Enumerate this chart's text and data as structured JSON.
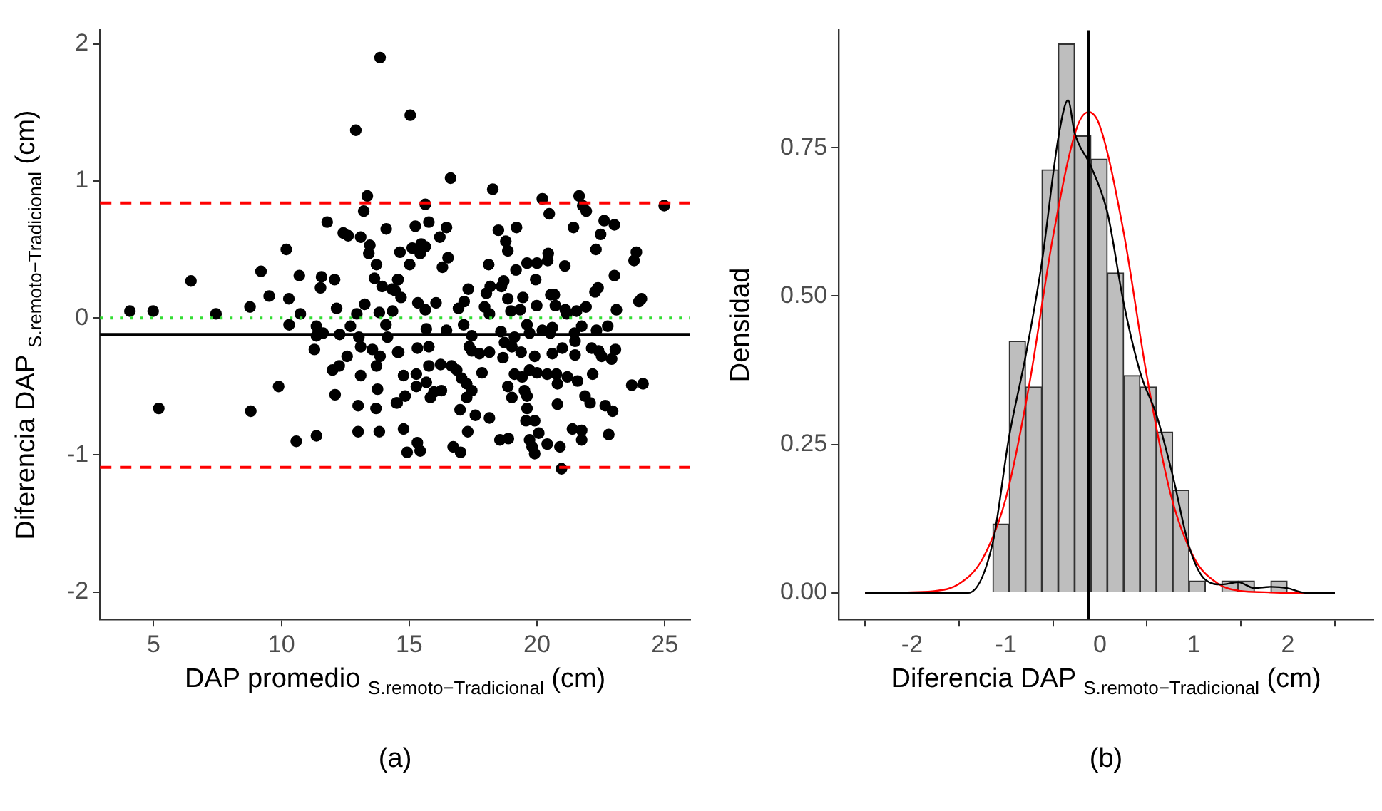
{
  "chart_data": [
    {
      "type": "scatter",
      "title": "(a)",
      "xlabel": "DAP promedio $_{S.remoto−Tradicional}$ (cm)",
      "ylabel": "Diferencia DAP $_{S.remoto−Tradicional}$ (cm)",
      "xlim": [
        2.9,
        26.0
      ],
      "ylim": [
        -2.2,
        2.1
      ],
      "xticks": [
        5,
        10,
        15,
        20,
        25
      ],
      "yticks": [
        -2,
        -1,
        0,
        1,
        2
      ],
      "grid": false,
      "marker": "circle",
      "ref_lines": [
        {
          "axis": "y",
          "value": 0.84,
          "color": "#ff0000",
          "line_style": "dashed"
        },
        {
          "axis": "y",
          "value": -1.09,
          "color": "#ff0000",
          "line_style": "dashed"
        },
        {
          "axis": "y",
          "value": -0.12,
          "color": "#000000",
          "line_style": "solid"
        },
        {
          "axis": "y",
          "value": 0,
          "color": "#33dd33",
          "line_style": "dotted"
        }
      ],
      "series": [
        {
          "color": "#000000",
          "x": [
            13.86,
            12.91,
            13.36,
            13.22,
            11.79,
            12.42,
            12.61,
            13.1,
            14.1,
            13.46,
            13.42,
            10.19,
            13.72,
            9.2,
            6.46,
            10.7,
            11.57,
            11.53,
            12.08,
            13.64,
            13.94,
            14.33,
            14.55,
            9.52,
            10.29,
            8.77,
            4.07,
            4.98,
            7.44,
            10.74,
            12.16,
            12.95,
            13.26,
            13.83,
            14.35,
            10.3,
            11.37,
            11.37,
            11.63,
            12.28,
            12.7,
            13.03,
            13.1,
            13.56,
            13.86,
            13.72,
            14.15,
            14.09,
            11.29,
            12.57,
            12.0,
            12.26,
            13.1,
            9.89,
            12.1,
            13.76,
            14.55,
            14.5,
            5.2,
            8.8,
            13.0,
            13.7,
            13.0,
            13.83,
            10.58,
            11.37,
            15.04,
            16.62,
            18.27,
            20.21,
            20.48,
            21.65,
            21.79,
            21.93,
            24.98,
            15.63,
            15.24,
            15.77,
            16.46,
            16.2,
            18.49,
            19.2,
            18.78,
            18.86,
            21.43,
            22.63,
            23.03,
            22.49,
            22.31,
            14.64,
            15.12,
            15.47,
            15.63,
            15.43,
            15.02,
            16.52,
            16.3,
            18.11,
            19.61,
            20.0,
            20.44,
            20.42,
            21.09,
            23.89,
            23.8,
            23.03,
            19.18,
            19.95,
            18.7,
            18.61,
            18.17,
            18.02,
            17.31,
            17.15,
            16.93,
            16.05,
            15.34,
            15.63,
            14.68,
            14.45,
            14.57,
            18.86,
            19.45,
            20.54,
            20.68,
            22.39,
            22.27,
            24.09,
            23.99,
            23.11,
            17.95,
            18.14,
            18.98,
            19.34,
            19.99,
            20.72,
            21.11,
            21.55,
            21.92,
            21.17,
            15.67,
            16.46,
            17.13,
            17.45,
            17.35,
            18.59,
            18.73,
            19.12,
            19.61,
            19.71,
            20.21,
            20.6,
            20.52,
            21.47,
            21.49,
            21.75,
            22.33,
            22.77,
            14.59,
            15.32,
            15.77,
            15.77,
            16.23,
            16.66,
            16.86,
            17.45,
            17.75,
            18.14,
            18.67,
            19.02,
            19.38,
            19.91,
            20.6,
            20.99,
            21.49,
            22.14,
            22.41,
            23.07,
            22.92,
            22.53,
            14.78,
            15.28,
            15.67,
            15.28,
            16.26,
            15.97,
            17.05,
            17.25,
            17.45,
            17.25,
            17.85,
            19.12,
            19.42,
            19.71,
            20.0,
            20.4,
            20.76,
            21.19,
            21.59,
            22.18,
            20.8,
            14.53,
            14.84,
            15.83,
            19.02,
            19.61,
            21.88,
            22.08,
            22.67,
            22.96,
            23.71,
            24.15,
            18.86,
            19.51,
            16.99,
            17.59,
            18.14,
            19.61,
            20.8,
            19.57,
            19.91,
            17.29,
            14.78,
            21.39,
            21.75,
            22.81,
            18.55,
            18.88,
            19.71,
            20.07,
            19.81,
            19.91,
            20.4,
            20.9,
            16.72,
            17.01,
            14.92,
            15.32,
            15.43,
            21.75,
            20.96
          ],
          "values": [
            1.9,
            1.37,
            0.89,
            0.78,
            0.7,
            0.62,
            0.6,
            0.59,
            0.65,
            0.53,
            0.47,
            0.5,
            0.39,
            0.34,
            0.27,
            0.31,
            0.3,
            0.22,
            0.28,
            0.29,
            0.23,
            0.21,
            0.28,
            0.16,
            0.14,
            0.08,
            0.05,
            0.05,
            0.03,
            0.03,
            0.07,
            0.03,
            0.1,
            0.04,
            0.05,
            -0.05,
            -0.06,
            -0.13,
            -0.11,
            -0.12,
            -0.06,
            -0.14,
            -0.21,
            -0.23,
            -0.28,
            -0.35,
            -0.14,
            -0.05,
            -0.23,
            -0.28,
            -0.38,
            -0.35,
            -0.42,
            -0.5,
            -0.56,
            -0.52,
            -0.25,
            -0.62,
            -0.66,
            -0.68,
            -0.64,
            -0.66,
            -0.83,
            -0.83,
            -0.9,
            -0.86,
            1.48,
            1.02,
            0.94,
            0.87,
            0.76,
            0.89,
            0.82,
            0.78,
            0.82,
            0.83,
            0.67,
            0.7,
            0.66,
            0.59,
            0.64,
            0.66,
            0.56,
            0.49,
            0.66,
            0.71,
            0.68,
            0.61,
            0.5,
            0.48,
            0.51,
            0.54,
            0.52,
            0.47,
            0.39,
            0.44,
            0.37,
            0.39,
            0.4,
            0.4,
            0.47,
            0.42,
            0.38,
            0.48,
            0.42,
            0.31,
            0.35,
            0.28,
            0.27,
            0.23,
            0.23,
            0.18,
            0.21,
            0.12,
            0.07,
            0.11,
            0.11,
            0.06,
            0.15,
            0.2,
            0.28,
            0.14,
            0.15,
            0.17,
            0.17,
            0.22,
            0.19,
            0.14,
            0.12,
            0.06,
            0.08,
            0.03,
            0.05,
            0.06,
            0.09,
            0.09,
            0.06,
            0.05,
            0.08,
            0.03,
            -0.08,
            -0.09,
            -0.05,
            -0.13,
            -0.21,
            -0.1,
            -0.18,
            -0.14,
            -0.05,
            -0.11,
            -0.09,
            -0.07,
            -0.11,
            -0.11,
            -0.17,
            -0.06,
            -0.09,
            -0.06,
            -0.25,
            -0.22,
            -0.21,
            -0.35,
            -0.34,
            -0.35,
            -0.38,
            -0.24,
            -0.26,
            -0.25,
            -0.29,
            -0.21,
            -0.25,
            -0.28,
            -0.26,
            -0.22,
            -0.27,
            -0.22,
            -0.24,
            -0.23,
            -0.3,
            -0.28,
            -0.42,
            -0.41,
            -0.47,
            -0.5,
            -0.53,
            -0.54,
            -0.44,
            -0.48,
            -0.53,
            -0.58,
            -0.4,
            -0.41,
            -0.43,
            -0.38,
            -0.4,
            -0.41,
            -0.41,
            -0.43,
            -0.46,
            -0.41,
            -0.48,
            -0.62,
            -0.57,
            -0.58,
            -0.58,
            -0.57,
            -0.57,
            -0.62,
            -0.64,
            -0.68,
            -0.49,
            -0.48,
            -0.5,
            -0.53,
            -0.67,
            -0.71,
            -0.73,
            -0.66,
            -0.63,
            -0.75,
            -0.75,
            -0.83,
            -0.81,
            -0.81,
            -0.82,
            -0.85,
            -0.89,
            -0.88,
            -0.89,
            -0.84,
            -0.94,
            -0.99,
            -0.92,
            -0.94,
            -0.94,
            -0.98,
            -0.98,
            -0.91,
            -0.97,
            -0.89,
            -1.1
          ]
        }
      ]
    },
    {
      "type": "histogram",
      "title": "(b)",
      "xlabel": "Diferencia DAP $_{S.remoto−Tradicional}$ (cm)",
      "ylabel": "Densidad",
      "xlim": [
        -2.78,
        2.91
      ],
      "ylim": [
        -0.045,
        0.948
      ],
      "xticks": [
        -2,
        -1,
        0,
        1,
        2
      ],
      "yticks": [
        {
          "value": 0,
          "label": "0.00"
        },
        {
          "value": 0.25,
          "label": "0.25"
        },
        {
          "value": 0.5,
          "label": "0.50"
        },
        {
          "value": 0.75,
          "label": "0.75"
        }
      ],
      "grid": false,
      "ref_lines": [
        {
          "axis": "x",
          "value": -0.12,
          "color": "#000000",
          "line_style": "solid"
        }
      ],
      "series": [
        {
          "type": "histogram",
          "color": "#bebebe",
          "bins": [
            -1.14,
            -0.966,
            -0.792,
            -0.618,
            -0.444,
            -0.27,
            -0.096,
            0.078,
            0.252,
            0.426,
            0.6,
            0.774,
            0.948,
            1.122,
            1.296,
            1.47,
            1.644,
            1.818,
            1.992
          ],
          "values": [
            0.116,
            0.424,
            0.347,
            0.713,
            0.925,
            0.77,
            0.731,
            0.539,
            0.366,
            0.347,
            0.271,
            0.173,
            0.02,
            0,
            0.02,
            0.02,
            0,
            0.02
          ]
        },
        {
          "type": "line",
          "color": "#000000",
          "x": [
            -2.5,
            -1.4,
            -1.14,
            -0.97,
            -0.79,
            -0.62,
            -0.44,
            -0.34,
            -0.27,
            -0.1,
            0.08,
            0.25,
            0.43,
            0.6,
            0.77,
            0.95,
            1.12,
            1.3,
            1.47,
            1.64,
            1.82,
            1.99,
            2.18,
            2.5
          ],
          "values": [
            0,
            0,
            0.085,
            0.26,
            0.4,
            0.555,
            0.77,
            0.83,
            0.775,
            0.72,
            0.64,
            0.49,
            0.37,
            0.3,
            0.2,
            0.077,
            0.022,
            0.014,
            0.018,
            0.008,
            0.01,
            0.008,
            0,
            0
          ]
        },
        {
          "type": "line",
          "color": "#ff0000",
          "x": [
            -2.5,
            -2.25,
            -2.0,
            -1.75,
            -1.5,
            -1.25,
            -1.0,
            -0.75,
            -0.5,
            -0.25,
            -0.12,
            0,
            0.25,
            0.5,
            0.75,
            1.0,
            1.25,
            1.5,
            1.75,
            2.0,
            2.25,
            2.5
          ],
          "values": [
            0,
            0,
            0.001,
            0.003,
            0.015,
            0.057,
            0.16,
            0.353,
            0.6,
            0.782,
            0.81,
            0.786,
            0.609,
            0.364,
            0.167,
            0.059,
            0.016,
            0.003,
            0.001,
            0,
            0,
            0
          ]
        }
      ]
    }
  ]
}
